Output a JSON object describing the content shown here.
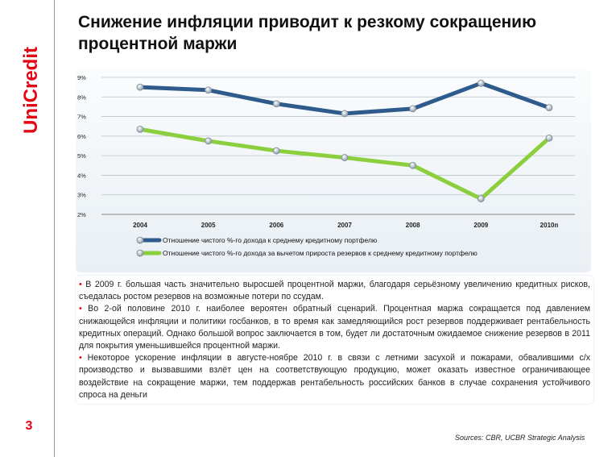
{
  "brand": {
    "name": "UniCredit",
    "color": "#e30613"
  },
  "page_number": "3",
  "title": "Снижение инфляции приводит к резкому сокращению процентной маржи",
  "chart_data": {
    "type": "line",
    "categories": [
      "2004",
      "2005",
      "2006",
      "2007",
      "2008",
      "2009",
      "2010п"
    ],
    "y_ticks": [
      "2%",
      "3%",
      "4%",
      "5%",
      "6%",
      "7%",
      "8%",
      "9%"
    ],
    "ylim": [
      2,
      9
    ],
    "grid": true,
    "legend_position": "bottom-left",
    "series": [
      {
        "name": "Отношение чистого %-го дохода к среднему кредитному портфелю",
        "color": "#2e5a8c",
        "values": [
          8.5,
          8.35,
          7.65,
          7.15,
          7.4,
          8.7,
          7.45
        ]
      },
      {
        "name": "Отношение чистого %-го дохода за вычетом прироста резервов к среднему кредитному портфелю",
        "color": "#8ccf3e",
        "values": [
          6.35,
          5.75,
          5.25,
          4.9,
          4.5,
          2.8,
          5.9
        ]
      }
    ]
  },
  "commentary": [
    "В 2009 г. большая часть значительно выросшей процентной маржи, благодаря серьёзному увеличению кредитных рисков, съедалась ростом резервов на возможные потери по ссудам.",
    "Во 2-ой половине 2010 г. наиболее вероятен обратный сценарий. Процентная маржа сокращается под давлением снижающейся инфляции и политики госбанков, в то время как замедляющийся рост резервов поддерживает рентабельность кредитных операций. Однако большой вопрос заключается в том, будет ли достаточным ожидаемое снижение резервов в 2011 для покрытия уменьшившейся процентной маржи.",
    "Некоторое ускорение инфляции в августе-ноябре 2010 г. в связи с летними засухой и пожарами, обвалившими с/х производство и вызвавшими взлёт цен на соответствующую продукцию, может оказать известное ограничивающее воздействие на сокращение маржи, тем поддержав рентабельность российских банков в случае сохранения устойчивого спроса на деньги"
  ],
  "sources": "Sources: CBR, UCBR Strategic Analysis"
}
